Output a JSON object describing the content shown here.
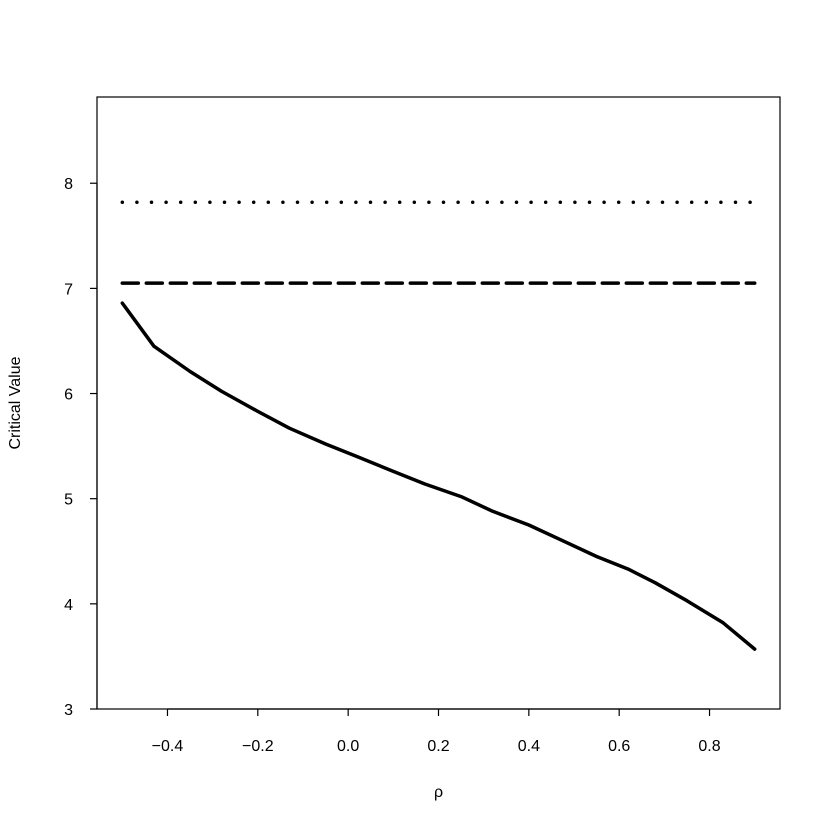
{
  "chart_data": {
    "type": "line",
    "title": "",
    "xlabel": "ρ",
    "ylabel": "Critical Value",
    "xlim": [
      -0.556,
      0.956
    ],
    "ylim": [
      3,
      8.82
    ],
    "x_ticks": [
      -0.4,
      -0.2,
      0.0,
      0.2,
      0.4,
      0.6,
      0.8
    ],
    "x_tick_labels": [
      "−0.4",
      "−0.2",
      "0.0",
      "0.2",
      "0.4",
      "0.6",
      "0.8"
    ],
    "y_ticks": [
      3,
      4,
      5,
      6,
      7,
      8
    ],
    "y_tick_labels": [
      "3",
      "4",
      "5",
      "6",
      "7",
      "8"
    ],
    "grid": false,
    "series": [
      {
        "style": "solid",
        "color": "#000000",
        "x": [
          -0.5,
          -0.43,
          -0.35,
          -0.28,
          -0.2,
          -0.13,
          -0.05,
          0.02,
          0.1,
          0.17,
          0.25,
          0.32,
          0.4,
          0.47,
          0.55,
          0.62,
          0.68,
          0.75,
          0.83,
          0.9
        ],
        "y": [
          6.86,
          6.45,
          6.21,
          6.02,
          5.83,
          5.67,
          5.52,
          5.4,
          5.26,
          5.14,
          5.02,
          4.88,
          4.75,
          4.61,
          4.45,
          4.33,
          4.2,
          4.03,
          3.82,
          3.57
        ]
      },
      {
        "style": "dashed",
        "color": "#000000",
        "x": [
          -0.5,
          0.9
        ],
        "y": [
          7.05,
          7.05
        ]
      },
      {
        "style": "dotted",
        "color": "#000000",
        "x": [
          -0.5,
          0.9
        ],
        "y": [
          7.82,
          7.82
        ]
      }
    ]
  }
}
